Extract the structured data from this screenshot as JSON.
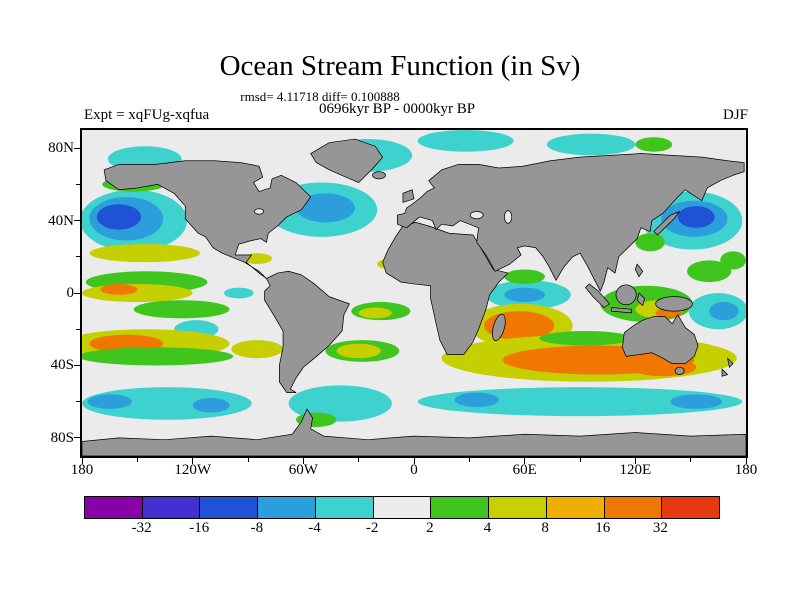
{
  "colors": {
    "land": "#969696",
    "ocean": "#ebebeb",
    "coastline": "#000000"
  },
  "chart_data": {
    "type": "heatmap",
    "title": "Ocean Stream Function (in Sv)",
    "stats_text": "rmsd= 4.11718 diff= 0.100888",
    "rmsd": 4.11718,
    "diff": 0.100888,
    "period_text": "0696kyr BP - 0000kyr BP",
    "experiment_text": "Expt = xqFUg-xqfua",
    "season": "DJF",
    "units": "Sv",
    "projection": "equirectangular",
    "lon_range": [
      -180,
      180
    ],
    "lat_range": [
      -90,
      90
    ],
    "x_tick_labels": [
      "180",
      "120W",
      "60W",
      "0",
      "60E",
      "120E",
      "180"
    ],
    "x_tick_lons": [
      -180,
      -120,
      -60,
      0,
      60,
      120,
      180
    ],
    "x_minor_tick_step": 30,
    "y_tick_labels": [
      "80N",
      "40N",
      "0",
      "40S",
      "80S"
    ],
    "y_tick_lats": [
      80,
      40,
      0,
      -40,
      -80
    ],
    "y_minor_tick_step": 20,
    "colorbar": {
      "levels": [
        -32,
        -16,
        -8,
        -4,
        -2,
        2,
        4,
        8,
        16,
        32
      ],
      "labels": [
        "-32",
        "-16",
        "-8",
        "-4",
        "-2",
        "2",
        "4",
        "8",
        "16",
        "32"
      ],
      "colors": [
        "#8800a8",
        "#4430d0",
        "#1f52d4",
        "#2d9edc",
        "#3ed2ce",
        "#ebebeb",
        "#3fc51e",
        "#c6cf00",
        "#efaf00",
        "#f07800",
        "#e63911"
      ]
    },
    "anomalies_format": [
      "lon_center_deg",
      "lat_center_deg",
      "rlon_deg",
      "rlat_deg",
      "colorbar_band_index"
    ],
    "anomalies": [
      [
        -152,
        40,
        29,
        17,
        4
      ],
      [
        -156,
        41,
        20,
        12,
        3
      ],
      [
        -160,
        42,
        12,
        7,
        2
      ],
      [
        -146,
        74,
        20,
        7,
        4
      ],
      [
        -152,
        60,
        17,
        4,
        6
      ],
      [
        -146,
        22,
        30,
        5,
        7
      ],
      [
        151,
        40,
        27,
        16,
        4
      ],
      [
        152,
        41,
        18,
        10,
        3
      ],
      [
        153,
        42,
        10,
        6,
        2
      ],
      [
        128,
        28,
        8,
        5,
        6
      ],
      [
        -50,
        46,
        30,
        15,
        4
      ],
      [
        -48,
        47,
        16,
        8,
        3
      ],
      [
        -25,
        76,
        24,
        9,
        4
      ],
      [
        28,
        84,
        26,
        6,
        4
      ],
      [
        96,
        82,
        24,
        6,
        4
      ],
      [
        130,
        82,
        10,
        4,
        6
      ],
      [
        -85,
        19,
        8,
        3,
        7
      ],
      [
        -12,
        16,
        8,
        3,
        7
      ],
      [
        -145,
        6,
        33,
        6,
        6
      ],
      [
        -150,
        0,
        30,
        5,
        7
      ],
      [
        -160,
        2,
        10,
        3,
        9
      ],
      [
        -126,
        -9,
        26,
        5,
        6
      ],
      [
        -118,
        -20,
        12,
        5,
        4
      ],
      [
        -95,
        0,
        8,
        3,
        4
      ],
      [
        -18,
        -10,
        16,
        5,
        6
      ],
      [
        -21,
        -11,
        9,
        3,
        7
      ],
      [
        62,
        -1,
        23,
        8,
        4
      ],
      [
        60,
        -1,
        11,
        4,
        3
      ],
      [
        58,
        -18,
        28,
        12,
        7
      ],
      [
        57,
        -18,
        19,
        8,
        9
      ],
      [
        60,
        9,
        11,
        4,
        6
      ],
      [
        126,
        -6,
        25,
        10,
        6
      ],
      [
        133,
        -9,
        13,
        5,
        7
      ],
      [
        138,
        -11,
        7,
        3,
        9
      ],
      [
        165,
        -10,
        16,
        10,
        4
      ],
      [
        168,
        -10,
        8,
        5,
        3
      ],
      [
        160,
        12,
        12,
        6,
        6
      ],
      [
        173,
        18,
        7,
        5,
        6
      ],
      [
        95,
        -36,
        80,
        13,
        7
      ],
      [
        100,
        -37,
        52,
        8,
        9
      ],
      [
        93,
        -25,
        25,
        4,
        6
      ],
      [
        135,
        -41,
        18,
        5,
        9
      ],
      [
        -28,
        -32,
        20,
        6,
        6
      ],
      [
        -30,
        -32,
        12,
        4,
        7
      ],
      [
        -85,
        -31,
        14,
        5,
        7
      ],
      [
        -145,
        -28,
        45,
        8,
        7
      ],
      [
        -156,
        -28,
        20,
        5,
        9
      ],
      [
        -140,
        -35,
        42,
        5,
        6
      ],
      [
        -134,
        -61,
        46,
        9,
        4
      ],
      [
        -165,
        -60,
        12,
        4,
        3
      ],
      [
        -110,
        -62,
        10,
        4,
        3
      ],
      [
        -40,
        -61,
        28,
        10,
        4
      ],
      [
        -53,
        -70,
        11,
        4,
        6
      ],
      [
        90,
        -60,
        88,
        8,
        4
      ],
      [
        34,
        -59,
        12,
        4,
        3
      ],
      [
        153,
        -60,
        14,
        4,
        3
      ]
    ]
  }
}
